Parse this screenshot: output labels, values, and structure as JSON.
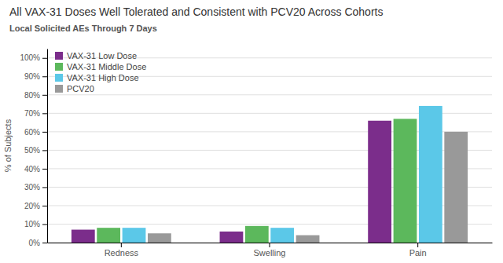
{
  "chart_data": {
    "type": "bar",
    "title": "All VAX-31 Doses Well Tolerated and Consistent with PCV20 Across Cohorts",
    "subtitle": "Local Solicited AEs Through 7 Days",
    "categories": [
      "Redness",
      "Swelling",
      "Pain"
    ],
    "series": [
      {
        "name": "VAX-31 Low Dose",
        "color": "#7b2d8b",
        "values": [
          7,
          6,
          66
        ]
      },
      {
        "name": "VAX-31 Middle Dose",
        "color": "#5cb85c",
        "values": [
          8,
          9,
          67
        ]
      },
      {
        "name": "VAX-31 High Dose",
        "color": "#5bc8e8",
        "values": [
          8,
          8,
          74
        ]
      },
      {
        "name": "PCV20",
        "color": "#999999",
        "values": [
          5,
          4,
          60
        ]
      }
    ],
    "ylabel": "% of Subjects",
    "ylim": [
      0,
      105
    ],
    "yticks": [
      {
        "value": 0,
        "label": "0%"
      },
      {
        "value": 10,
        "label": "10%"
      },
      {
        "value": 20,
        "label": "20%"
      },
      {
        "value": 30,
        "label": "30%"
      },
      {
        "value": 40,
        "label": "40%"
      },
      {
        "value": 50,
        "label": "50%"
      },
      {
        "value": 60,
        "label": "60%"
      },
      {
        "value": 70,
        "label": "70%"
      },
      {
        "value": 80,
        "label": "80%"
      },
      {
        "value": 90,
        "label": "90%"
      },
      {
        "value": 100,
        "label": "100%"
      }
    ],
    "grid": true,
    "legend": "top-left"
  }
}
